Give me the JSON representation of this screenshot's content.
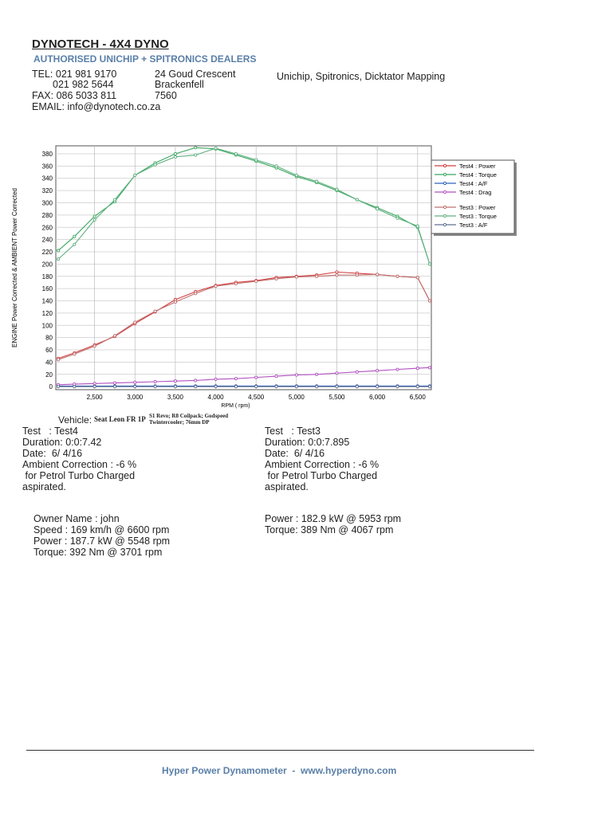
{
  "header": {
    "title": "DYNOTECH - 4X4 DYNO",
    "subtitle": "AUTHORISED UNICHIP + SPITRONICS DEALERS",
    "contact": [
      "TEL: 021 981 9170",
      "021 982 5644",
      "FAX: 086 5033 811",
      "EMAIL: info@dynotech.co.za"
    ],
    "address": [
      "24 Goud Crescent",
      "Brackenfell",
      "7560"
    ],
    "services": "Unichip, Spitronics, Dicktator Mapping"
  },
  "chart_data": {
    "type": "line",
    "ylabel": "ENGINE Power Corrected & AMBIENT Power Corrected",
    "xlabel": "RPM ( rpm)",
    "x": [
      2050,
      2250,
      2500,
      2750,
      3000,
      3250,
      3500,
      3750,
      4000,
      4250,
      4500,
      4750,
      5000,
      5250,
      5500,
      5750,
      6000,
      6250,
      6500,
      6650
    ],
    "xlim": [
      2020,
      6670
    ],
    "xticks": [
      {
        "value": 2500,
        "label": "2,500"
      },
      {
        "value": 3000,
        "label": "3,000"
      },
      {
        "value": 3500,
        "label": "3,500"
      },
      {
        "value": 4000,
        "label": "4,000"
      },
      {
        "value": 4500,
        "label": "4,500"
      },
      {
        "value": 5000,
        "label": "5,000"
      },
      {
        "value": 5500,
        "label": "5,500"
      },
      {
        "value": 6000,
        "label": "6,000"
      },
      {
        "value": 6500,
        "label": "6,500"
      }
    ],
    "ylim": [
      -5,
      393
    ],
    "yticks": [
      0,
      20,
      40,
      60,
      80,
      100,
      120,
      140,
      160,
      180,
      200,
      220,
      240,
      260,
      280,
      300,
      320,
      340,
      360,
      380
    ],
    "grid": true,
    "series": [
      {
        "name": "Test4 : Power",
        "color": "#d04040",
        "values": [
          46,
          55,
          68,
          82,
          103,
          122,
          142,
          155,
          165,
          170,
          173,
          178,
          180,
          182,
          187,
          185,
          183,
          180,
          178,
          140
        ]
      },
      {
        "name": "Test4 : Torque",
        "color": "#3aa860",
        "values": [
          222,
          245,
          278,
          302,
          345,
          365,
          380,
          390,
          388,
          378,
          368,
          357,
          343,
          333,
          320,
          305,
          292,
          278,
          260,
          200
        ]
      },
      {
        "name": "Test4 : A/F",
        "color": "#3060c0",
        "values": [
          1,
          1,
          1,
          1,
          1,
          1,
          1,
          1,
          1,
          1,
          1,
          1,
          1,
          1,
          1,
          1,
          1,
          1,
          1,
          1
        ]
      },
      {
        "name": "Test4 : Drag",
        "color": "#b050c0",
        "values": [
          3,
          4,
          5,
          6,
          7,
          8,
          9,
          10,
          12,
          13,
          15,
          17,
          19,
          20,
          22,
          24,
          26,
          28,
          30,
          31
        ]
      },
      {
        "name": "Test3 : Power",
        "color": "#c07070",
        "values": [
          44,
          53,
          66,
          83,
          105,
          123,
          138,
          152,
          164,
          168,
          172,
          176,
          179,
          180,
          182,
          182,
          183,
          180,
          178,
          140
        ]
      },
      {
        "name": "Test3 : Torque",
        "color": "#60b080",
        "values": [
          208,
          232,
          272,
          305,
          345,
          362,
          375,
          378,
          389,
          380,
          370,
          360,
          345,
          335,
          322,
          305,
          290,
          275,
          262,
          200
        ]
      },
      {
        "name": "Test3 : A/F",
        "color": "#607090",
        "values": [
          0,
          0,
          0,
          0,
          0,
          0,
          0,
          0,
          0,
          0,
          0,
          0,
          0,
          0,
          0,
          0,
          0,
          0,
          0,
          0
        ]
      }
    ]
  },
  "vehicle": {
    "label": "Vehicle:",
    "name": "Seat Leon FR 1P",
    "mods": "S1 Revo; R8 Coilpack; Godspeed Twintercooler; 76mm DP"
  },
  "test4": [
    "Test   : Test4",
    "Duration: 0:0:7.42",
    "Date:  6/ 4/16",
    "Ambient Correction : -6 %",
    " for Petrol Turbo Charged",
    "aspirated."
  ],
  "test3": [
    "Test   : Test3",
    "Duration: 0:0:7.895",
    "Date:  6/ 4/16",
    "Ambient Correction : -6 %",
    " for Petrol Turbo Charged",
    "aspirated."
  ],
  "results4": [
    "Owner Name : john",
    "Speed : 169 km/h @ 6600 rpm",
    "Power : 187.7 kW @ 5548 rpm",
    "Torque: 392 Nm @ 3701 rpm"
  ],
  "results3": [
    "Power : 182.9 kW @ 5953 rpm",
    "Torque: 389 Nm @ 4067 rpm"
  ],
  "footer": "Hyper Power Dynamometer  -  www.hyperdyno.com"
}
